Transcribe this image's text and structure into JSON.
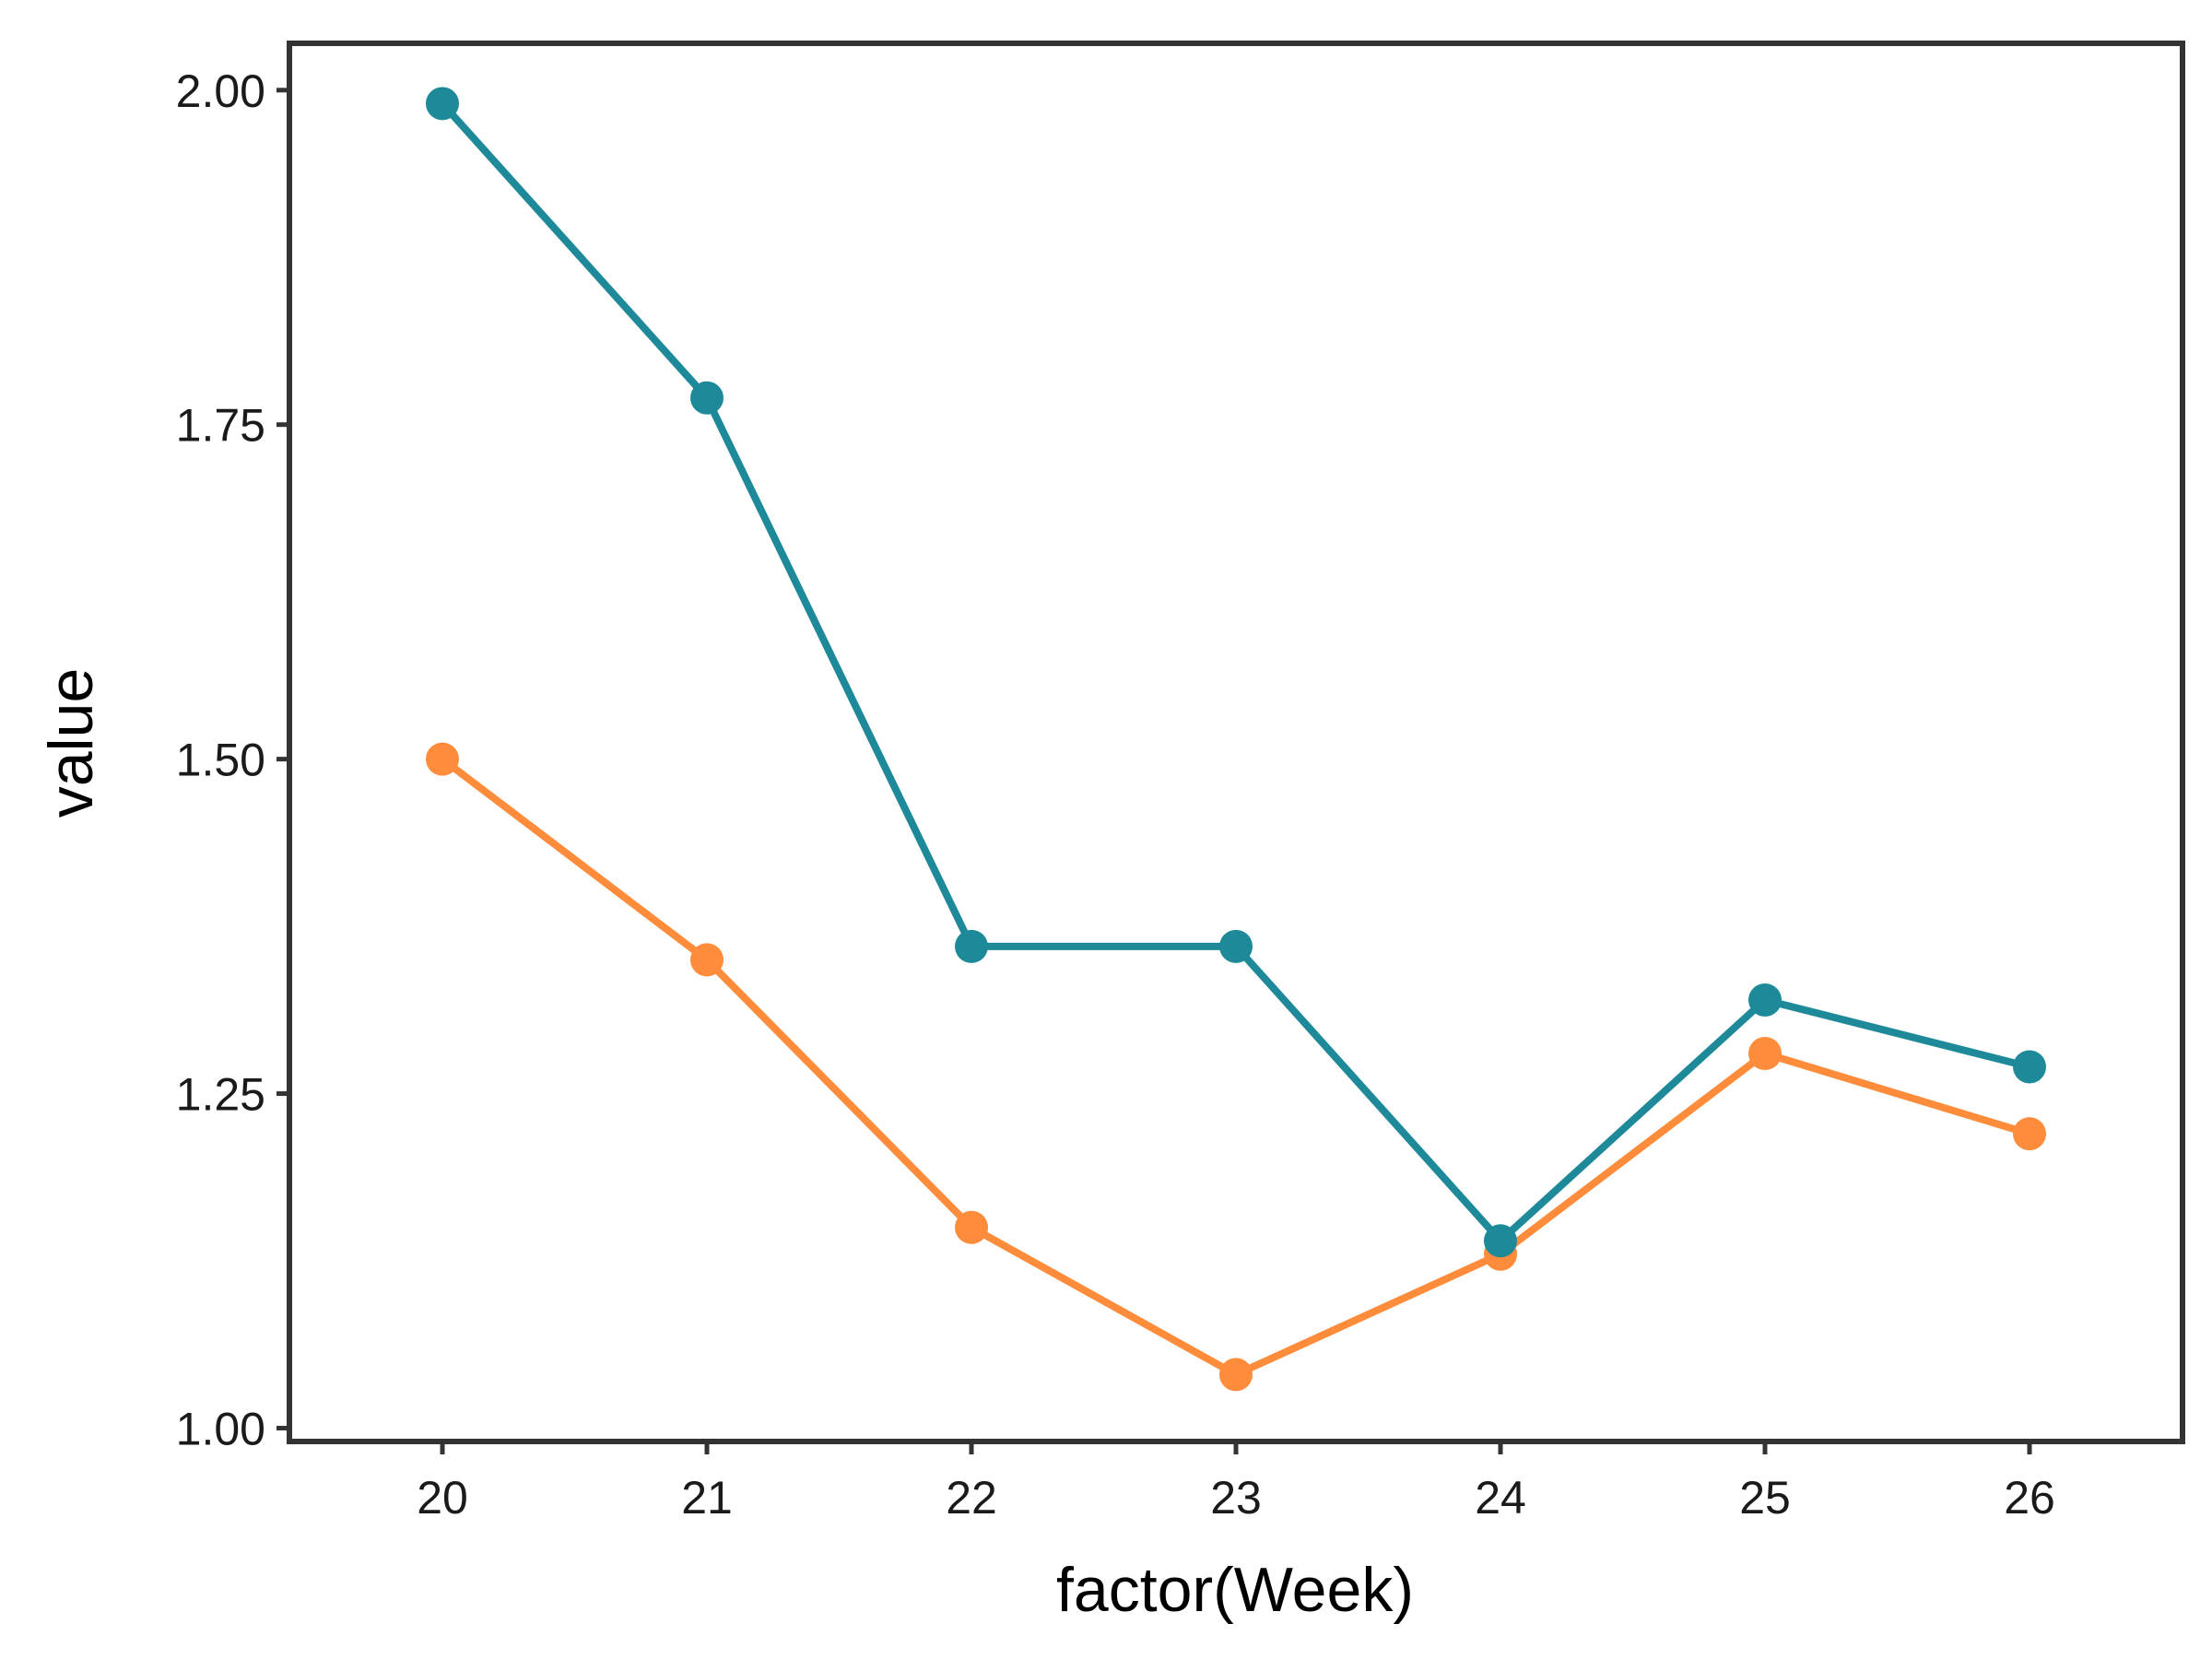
{
  "chart_data": {
    "type": "line",
    "title": "",
    "xlabel": "factor(Week)",
    "ylabel": "value",
    "categories": [
      "20",
      "21",
      "22",
      "23",
      "24",
      "25",
      "26"
    ],
    "ylim": [
      0.99,
      2.035
    ],
    "yticks": [
      "1.00",
      "1.25",
      "1.50",
      "1.75",
      "2.00"
    ],
    "ytick_values": [
      1.0,
      1.25,
      1.5,
      1.75,
      2.0
    ],
    "grid": false,
    "legend": "none",
    "series": [
      {
        "color": "#1e8a99",
        "values": [
          1.99,
          1.77,
          1.36,
          1.36,
          1.14,
          1.32,
          1.27
        ]
      },
      {
        "color": "#ff8c3a",
        "values": [
          1.5,
          1.35,
          1.15,
          1.04,
          1.13,
          1.28,
          1.22
        ]
      }
    ]
  }
}
